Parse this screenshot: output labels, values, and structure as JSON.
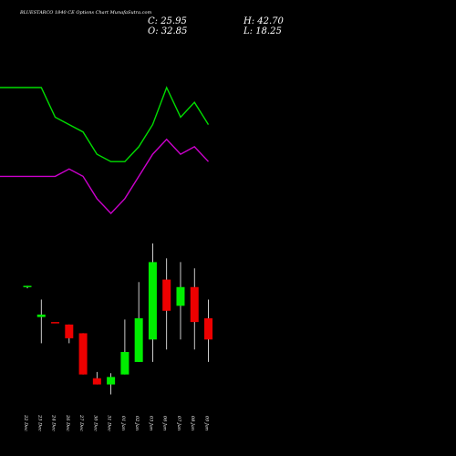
{
  "header": {
    "title": "BLUESTARCO 1840  CE Options  Chart MunafaSutra.com",
    "close_text": "C: 25.95",
    "open_text": "O: 32.85",
    "high_text": "H: 42.70",
    "low_text": "L: 18.25"
  },
  "colors": {
    "background": "#000000",
    "up": "#00ee00",
    "down": "#ee0000",
    "upper_band": "#00dd00",
    "lower_band": "#cc00cc",
    "wick": "#ffffff"
  },
  "chart_data": {
    "type": "candlestick",
    "categories": [
      "22 Dec",
      "23 Dec",
      "24 Dec",
      "26 Dec",
      "27 Dec",
      "30 Dec",
      "31 Dec",
      "01 Jan",
      "02 Jan",
      "03 Jan",
      "06 Jan",
      "07 Jan",
      "08 Jan",
      "09 Jan"
    ],
    "candles": [
      {
        "open": 32.0,
        "high": 32.1,
        "low": 31.9,
        "close": 32.1
      },
      {
        "open": 29.6,
        "high": 31.0,
        "low": 27.5,
        "close": 29.8
      },
      {
        "open": 29.2,
        "high": 29.2,
        "low": 29.2,
        "close": 29.1
      },
      {
        "open": 29.0,
        "high": 29.0,
        "low": 27.5,
        "close": 27.9
      },
      {
        "open": 28.3,
        "high": 28.3,
        "low": 25.0,
        "close": 25.0
      },
      {
        "open": 24.7,
        "high": 25.2,
        "low": 24.2,
        "close": 24.2
      },
      {
        "open": 24.2,
        "high": 25.1,
        "low": 23.4,
        "close": 24.8
      },
      {
        "open": 25.0,
        "high": 29.4,
        "low": 25.0,
        "close": 26.8
      },
      {
        "open": 26.0,
        "high": 32.4,
        "low": 26.0,
        "close": 29.5
      },
      {
        "open": 27.8,
        "high": 35.5,
        "low": 26.0,
        "close": 34.0
      },
      {
        "open": 32.6,
        "high": 34.3,
        "low": 27.0,
        "close": 30.1
      },
      {
        "open": 30.5,
        "high": 34.0,
        "low": 27.8,
        "close": 32.0
      },
      {
        "open": 32.0,
        "high": 33.5,
        "low": 27.0,
        "close": 29.2
      },
      {
        "open": 29.5,
        "high": 31.0,
        "low": 26.0,
        "close": 27.8
      }
    ],
    "upper_band": [
      100,
      100,
      96,
      95,
      94,
      91,
      90,
      90,
      92,
      95,
      100,
      96,
      98,
      95
    ],
    "lower_band": [
      88,
      88,
      88,
      89,
      88,
      85,
      83,
      85,
      88,
      91,
      93,
      91,
      92,
      90
    ]
  }
}
